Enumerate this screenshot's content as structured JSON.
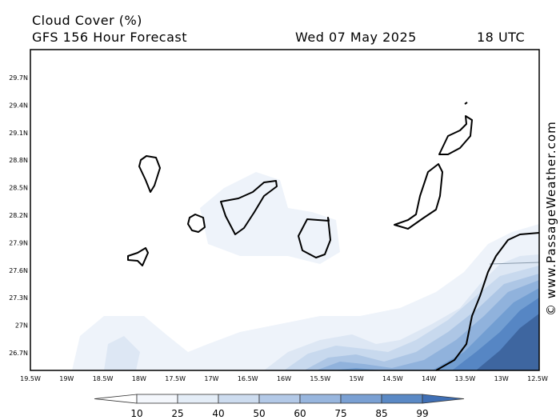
{
  "header": {
    "title": "Cloud Cover (%)",
    "model": "GFS 156 Hour Forecast",
    "date": "Wed 07 May 2025",
    "time": "18 UTC"
  },
  "map": {
    "lat_labels": [
      "29.7N",
      "29.4N",
      "29.1N",
      "28.8N",
      "28.5N",
      "28.2N",
      "27.9N",
      "27.6N",
      "27.3N",
      "27N",
      "26.7N"
    ],
    "lon_labels": [
      "19.5W",
      "19W",
      "18.5W",
      "18W",
      "17.5W",
      "17W",
      "16.5W",
      "16W",
      "15.5W",
      "15W",
      "14.5W",
      "14W",
      "13.5W",
      "13W",
      "12.5W"
    ]
  },
  "colorbar": {
    "labels": [
      10,
      25,
      40,
      50,
      60,
      75,
      85,
      99
    ]
  },
  "watermark": "© www.PassageWeather.com"
}
